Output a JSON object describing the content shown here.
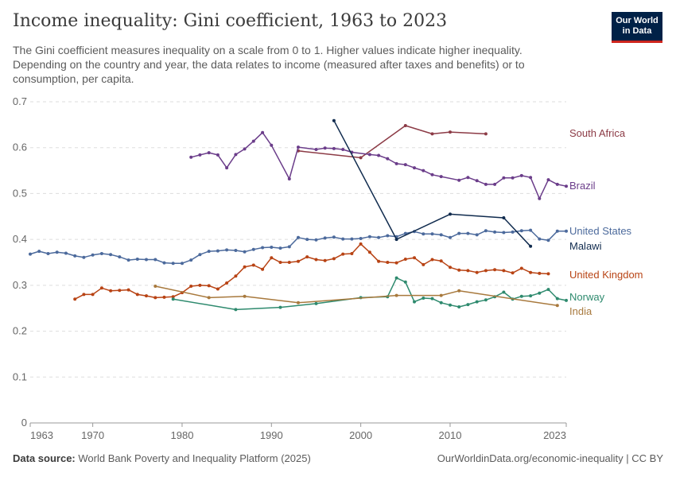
{
  "header": {
    "title": "Income inequality: Gini coefficient, 1963 to 2023",
    "subtitle": "The Gini coefficient measures inequality on a scale from 0 to 1. Higher values indicate higher inequality. Depending on the country and year, the data relates to income (measured after taxes and benefits) or to consumption, per capita."
  },
  "logo": {
    "line1": "Our World",
    "line2": "in Data",
    "bg_color": "#002147",
    "accent_color": "#ce261e"
  },
  "footer": {
    "source_label": "Data source:",
    "source_text": "World Bank Poverty and Inequality Platform (2025)",
    "url_text": "OurWorldinData.org/economic-inequality | CC BY"
  },
  "chart_data": {
    "type": "line",
    "title": "Income inequality: Gini coefficient, 1963 to 2023",
    "xlabel": "",
    "ylabel": "",
    "xlim": [
      1963,
      2023
    ],
    "ylim": [
      0,
      0.7
    ],
    "grid": true,
    "legend_placement": "right, inline labels",
    "y_ticks": [
      "0",
      "0.1",
      "0.2",
      "0.3",
      "0.4",
      "0.5",
      "0.6",
      "0.7"
    ],
    "y_tick_values": [
      0,
      0.1,
      0.2,
      0.3,
      0.4,
      0.5,
      0.6,
      0.7
    ],
    "x_ticks": [
      "1963",
      "1970",
      "1980",
      "1990",
      "2000",
      "2010",
      "2023"
    ],
    "x_tick_values": [
      1963,
      1970,
      1980,
      1990,
      2000,
      2010,
      2023
    ],
    "series": [
      {
        "name": "South Africa",
        "color": "#8c3b46",
        "points": [
          [
            1993,
            0.593
          ],
          [
            2000,
            0.578
          ],
          [
            2005,
            0.648
          ],
          [
            2008,
            0.63
          ],
          [
            2010,
            0.634
          ],
          [
            2014,
            0.63
          ]
        ]
      },
      {
        "name": "Brazil",
        "color": "#6b3d8a",
        "points": [
          [
            1981,
            0.579
          ],
          [
            1982,
            0.584
          ],
          [
            1983,
            0.589
          ],
          [
            1984,
            0.584
          ],
          [
            1985,
            0.556
          ],
          [
            1986,
            0.585
          ],
          [
            1987,
            0.597
          ],
          [
            1988,
            0.614
          ],
          [
            1989,
            0.633
          ],
          [
            1990,
            0.605
          ],
          [
            1992,
            0.532
          ],
          [
            1993,
            0.601
          ],
          [
            1995,
            0.596
          ],
          [
            1996,
            0.599
          ],
          [
            1997,
            0.598
          ],
          [
            1998,
            0.596
          ],
          [
            1999,
            0.59
          ],
          [
            2001,
            0.585
          ],
          [
            2002,
            0.583
          ],
          [
            2003,
            0.576
          ],
          [
            2004,
            0.565
          ],
          [
            2005,
            0.563
          ],
          [
            2006,
            0.556
          ],
          [
            2007,
            0.55
          ],
          [
            2008,
            0.541
          ],
          [
            2009,
            0.537
          ],
          [
            2011,
            0.529
          ],
          [
            2012,
            0.535
          ],
          [
            2013,
            0.528
          ],
          [
            2014,
            0.52
          ],
          [
            2015,
            0.52
          ],
          [
            2016,
            0.534
          ],
          [
            2017,
            0.534
          ],
          [
            2018,
            0.539
          ],
          [
            2019,
            0.535
          ],
          [
            2020,
            0.489
          ],
          [
            2021,
            0.53
          ],
          [
            2022,
            0.52
          ],
          [
            2023,
            0.516
          ]
        ]
      },
      {
        "name": "United States",
        "color": "#4c6a9c",
        "points": [
          [
            1963,
            0.368
          ],
          [
            1964,
            0.374
          ],
          [
            1965,
            0.369
          ],
          [
            1966,
            0.372
          ],
          [
            1967,
            0.37
          ],
          [
            1968,
            0.364
          ],
          [
            1969,
            0.361
          ],
          [
            1970,
            0.366
          ],
          [
            1971,
            0.369
          ],
          [
            1972,
            0.367
          ],
          [
            1973,
            0.362
          ],
          [
            1974,
            0.355
          ],
          [
            1975,
            0.357
          ],
          [
            1976,
            0.356
          ],
          [
            1977,
            0.356
          ],
          [
            1978,
            0.349
          ],
          [
            1979,
            0.348
          ],
          [
            1980,
            0.348
          ],
          [
            1981,
            0.355
          ],
          [
            1982,
            0.367
          ],
          [
            1983,
            0.374
          ],
          [
            1984,
            0.375
          ],
          [
            1985,
            0.377
          ],
          [
            1986,
            0.376
          ],
          [
            1987,
            0.373
          ],
          [
            1988,
            0.378
          ],
          [
            1989,
            0.382
          ],
          [
            1990,
            0.383
          ],
          [
            1991,
            0.381
          ],
          [
            1992,
            0.384
          ],
          [
            1993,
            0.404
          ],
          [
            1994,
            0.4
          ],
          [
            1995,
            0.399
          ],
          [
            1996,
            0.403
          ],
          [
            1997,
            0.405
          ],
          [
            1998,
            0.401
          ],
          [
            1999,
            0.401
          ],
          [
            2000,
            0.402
          ],
          [
            2001,
            0.406
          ],
          [
            2002,
            0.404
          ],
          [
            2003,
            0.408
          ],
          [
            2004,
            0.406
          ],
          [
            2005,
            0.413
          ],
          [
            2006,
            0.417
          ],
          [
            2007,
            0.412
          ],
          [
            2008,
            0.412
          ],
          [
            2009,
            0.41
          ],
          [
            2010,
            0.404
          ],
          [
            2011,
            0.413
          ],
          [
            2012,
            0.413
          ],
          [
            2013,
            0.41
          ],
          [
            2014,
            0.419
          ],
          [
            2015,
            0.416
          ],
          [
            2016,
            0.415
          ],
          [
            2017,
            0.416
          ],
          [
            2018,
            0.419
          ],
          [
            2019,
            0.42
          ],
          [
            2020,
            0.401
          ],
          [
            2021,
            0.398
          ],
          [
            2022,
            0.418
          ],
          [
            2023,
            0.418
          ]
        ]
      },
      {
        "name": "Malawi",
        "color": "#102b4e",
        "points": [
          [
            1997,
            0.659
          ],
          [
            2004,
            0.4
          ],
          [
            2010,
            0.455
          ],
          [
            2016,
            0.447
          ],
          [
            2019,
            0.385
          ]
        ]
      },
      {
        "name": "United Kingdom",
        "color": "#b84314",
        "points": [
          [
            1968,
            0.27
          ],
          [
            1969,
            0.28
          ],
          [
            1970,
            0.28
          ],
          [
            1971,
            0.294
          ],
          [
            1972,
            0.288
          ],
          [
            1973,
            0.289
          ],
          [
            1974,
            0.29
          ],
          [
            1975,
            0.28
          ],
          [
            1976,
            0.277
          ],
          [
            1977,
            0.273
          ],
          [
            1978,
            0.274
          ],
          [
            1979,
            0.275
          ],
          [
            1980,
            0.284
          ],
          [
            1981,
            0.298
          ],
          [
            1982,
            0.3
          ],
          [
            1983,
            0.299
          ],
          [
            1984,
            0.292
          ],
          [
            1985,
            0.305
          ],
          [
            1986,
            0.32
          ],
          [
            1987,
            0.34
          ],
          [
            1988,
            0.344
          ],
          [
            1989,
            0.335
          ],
          [
            1990,
            0.36
          ],
          [
            1991,
            0.35
          ],
          [
            1992,
            0.35
          ],
          [
            1993,
            0.352
          ],
          [
            1994,
            0.362
          ],
          [
            1995,
            0.356
          ],
          [
            1996,
            0.354
          ],
          [
            1997,
            0.358
          ],
          [
            1998,
            0.368
          ],
          [
            1999,
            0.369
          ],
          [
            2000,
            0.39
          ],
          [
            2001,
            0.372
          ],
          [
            2002,
            0.352
          ],
          [
            2003,
            0.35
          ],
          [
            2004,
            0.349
          ],
          [
            2005,
            0.357
          ],
          [
            2006,
            0.36
          ],
          [
            2007,
            0.345
          ],
          [
            2008,
            0.356
          ],
          [
            2009,
            0.353
          ],
          [
            2010,
            0.339
          ],
          [
            2011,
            0.333
          ],
          [
            2012,
            0.332
          ],
          [
            2013,
            0.328
          ],
          [
            2014,
            0.332
          ],
          [
            2015,
            0.334
          ],
          [
            2016,
            0.332
          ],
          [
            2017,
            0.327
          ],
          [
            2018,
            0.337
          ],
          [
            2019,
            0.328
          ],
          [
            2020,
            0.326
          ],
          [
            2021,
            0.325
          ]
        ]
      },
      {
        "name": "Norway",
        "color": "#2e8a6e",
        "points": [
          [
            1979,
            0.27
          ],
          [
            1986,
            0.247
          ],
          [
            1991,
            0.252
          ],
          [
            1995,
            0.26
          ],
          [
            2000,
            0.273
          ],
          [
            2003,
            0.275
          ],
          [
            2004,
            0.316
          ],
          [
            2005,
            0.307
          ],
          [
            2006,
            0.264
          ],
          [
            2007,
            0.272
          ],
          [
            2008,
            0.271
          ],
          [
            2009,
            0.262
          ],
          [
            2010,
            0.257
          ],
          [
            2011,
            0.253
          ],
          [
            2012,
            0.258
          ],
          [
            2013,
            0.264
          ],
          [
            2014,
            0.268
          ],
          [
            2015,
            0.275
          ],
          [
            2016,
            0.285
          ],
          [
            2017,
            0.27
          ],
          [
            2018,
            0.276
          ],
          [
            2019,
            0.277
          ],
          [
            2020,
            0.283
          ],
          [
            2021,
            0.291
          ],
          [
            2022,
            0.271
          ],
          [
            2023,
            0.267
          ]
        ]
      },
      {
        "name": "India",
        "color": "#a8793d",
        "points": [
          [
            1977,
            0.298
          ],
          [
            1983,
            0.273
          ],
          [
            1987,
            0.276
          ],
          [
            1993,
            0.262
          ],
          [
            2004,
            0.278
          ],
          [
            2009,
            0.278
          ],
          [
            2011,
            0.288
          ],
          [
            2022,
            0.256
          ]
        ]
      }
    ]
  }
}
